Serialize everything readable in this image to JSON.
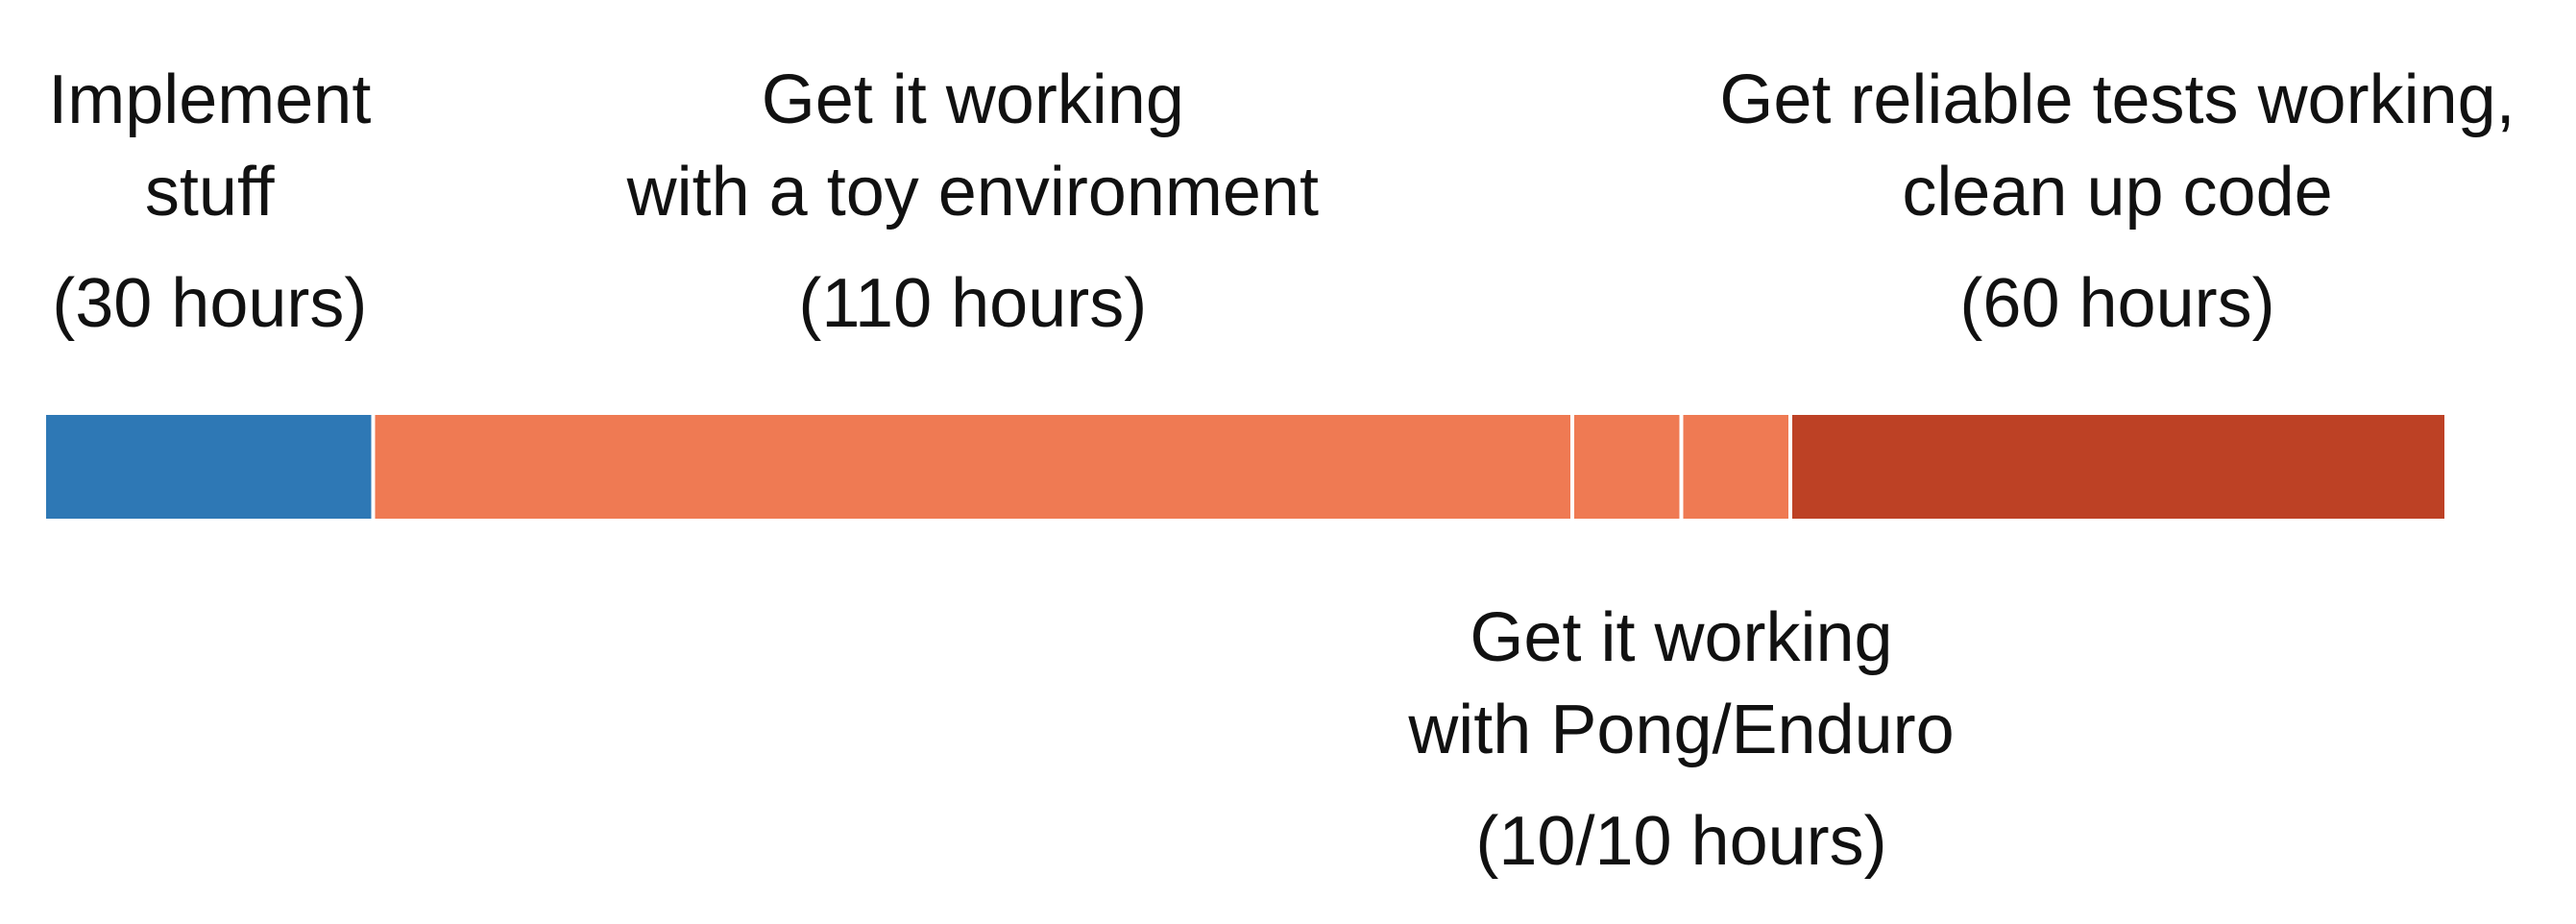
{
  "chart_data": {
    "type": "bar",
    "orientation": "horizontal",
    "stacked": true,
    "unit": "hours",
    "segments": [
      {
        "name": "Implement stuff",
        "hours": 30,
        "color": "#2e78b5"
      },
      {
        "name": "Get it working with a toy environment",
        "hours": 110,
        "color": "#ef7a53"
      },
      {
        "name": "Get it working with Pong",
        "hours": 10,
        "color": "#ef7a53"
      },
      {
        "name": "Get it working with Enduro",
        "hours": 10,
        "color": "#ef7a53"
      },
      {
        "name": "Get reliable tests working, clean up code",
        "hours": 60,
        "color": "#bd4125"
      }
    ],
    "annotations": [
      {
        "lines": [
          "Implement",
          "stuff"
        ],
        "hours_text": "(30 hours)",
        "segments": [
          0
        ],
        "placement": "above"
      },
      {
        "lines": [
          "Get it working",
          "with a toy environment"
        ],
        "hours_text": "(110 hours)",
        "segments": [
          1
        ],
        "placement": "above"
      },
      {
        "lines": [
          "Get reliable tests working,",
          "clean up code"
        ],
        "hours_text": "(60 hours)",
        "segments": [
          4
        ],
        "placement": "above"
      },
      {
        "lines": [
          "Get it working",
          "with Pong/Enduro"
        ],
        "hours_text": "(10/10 hours)",
        "segments": [
          2,
          3
        ],
        "placement": "below"
      }
    ],
    "grid": false,
    "legend": "none"
  }
}
